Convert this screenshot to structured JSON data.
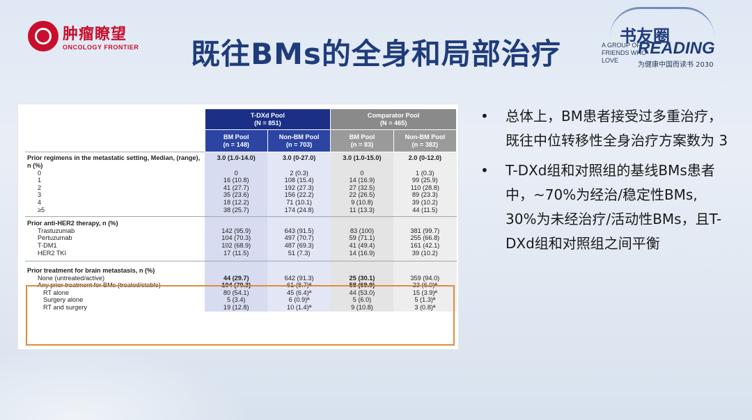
{
  "header": {
    "left_logo_cn": "肿瘤瞭望",
    "left_logo_en": "ONCOLOGY FRONTIER",
    "title": "既往BMs的全身和局部治疗",
    "right_logo_cn": "书友圈",
    "right_logo_en": "A GROUP OF FRIENDS WHO LOVE",
    "right_logo_reading": "READING",
    "right_logo_slogan": "为健康中国而读书 2030"
  },
  "table": {
    "group_headers": [
      "T-DXd Pool\n(N = 851)",
      "Comparator Pool\n(N = 465)"
    ],
    "sub_headers": [
      "BM Pool\n(n = 148)",
      "Non-BM Pool\n(n = 703)",
      "BM Pool\n(n = 83)",
      "Non-BM Pool\n(n = 382)"
    ],
    "sections": [
      {
        "title": "Prior regimens in the metastatic setting, Median, (range), n (%)",
        "title_values": [
          "3.0 (1.0-14.0)",
          "3.0 (0-27.0)",
          "3.0 (1.0-15.0)",
          "2.0 (0-12.0)"
        ],
        "rows": [
          {
            "label": "0",
            "values": [
              "0",
              "2 (0.3)",
              "0",
              "1 (0.3)"
            ]
          },
          {
            "label": "1",
            "values": [
              "16 (10.8)",
              "108 (15.4)",
              "14 (16.9)",
              "99 (25.9)"
            ]
          },
          {
            "label": "2",
            "values": [
              "41 (27.7)",
              "192 (27.3)",
              "27 (32.5)",
              "110 (28.8)"
            ]
          },
          {
            "label": "3",
            "values": [
              "35 (23.6)",
              "156 (22.2)",
              "22 (26.5)",
              "89 (23.3)"
            ]
          },
          {
            "label": "4",
            "values": [
              "18 (12.2)",
              "71 (10.1)",
              "9 (10.8)",
              "39 (10.2)"
            ]
          },
          {
            "label": "≥5",
            "values": [
              "38 (25.7)",
              "174 (24.8)",
              "11 (13.3)",
              "44 (11.5)"
            ]
          }
        ]
      },
      {
        "title": "Prior anti-HER2 therapy, n (%)",
        "rows": [
          {
            "label": "Trastuzumab",
            "values": [
              "142 (95.9)",
              "643 (91.5)",
              "83 (100)",
              "381 (99.7)"
            ]
          },
          {
            "label": "Pertuzumab",
            "values": [
              "104 (70.3)",
              "497 (70.7)",
              "59 (71.1)",
              "255 (66.8)"
            ]
          },
          {
            "label": "T-DM1",
            "values": [
              "102 (68.9)",
              "487 (69.3)",
              "41 (49.4)",
              "161 (42.1)"
            ]
          },
          {
            "label": "HER2 TKI",
            "values": [
              "17 (11.5)",
              "51 (7.3)",
              "14 (16.9)",
              "39 (10.2)"
            ]
          }
        ]
      },
      {
        "title": "Prior treatment for brain metastasis, n (%)",
        "rows": [
          {
            "label": "None (untreated/active)",
            "values": [
              "44 (29.7)",
              "642 (91.3)",
              "25 (30.1)",
              "359 (94.0)"
            ]
          },
          {
            "label": "Any prior treatment for BMs (treated/stable)",
            "values": [
              "104 (70.3)",
              "61 (8.7)ª",
              "58 (69.9)",
              "23 (6.0)ª"
            ]
          },
          {
            "label": "RT alone",
            "values": [
              "80 (54.1)",
              "45 (6.4)ª",
              "44 (53.0)",
              "15 (3.9)ª"
            ]
          },
          {
            "label": "Surgery alone",
            "values": [
              "5 (3.4)",
              "6 (0.9)ª",
              "5 (6.0)",
              "5 (1.3)ª"
            ]
          },
          {
            "label": "RT and surgery",
            "values": [
              "19 (12.8)",
              "10 (1.4)ª",
              "9 (10.8)",
              "3 (0.8)ª"
            ]
          }
        ]
      }
    ]
  },
  "bullets": [
    "总体上，BM患者接受过多重治疗，既往中位转移性全身治疗方案数为 3",
    "T-DXd组和对照组的基线BMs患者中，~70%为经治/稳定性BMs, 30%为未经治疗/活动性BMs，且T-DXd组和对照组之间平衡"
  ],
  "bullet_symbol": "•"
}
